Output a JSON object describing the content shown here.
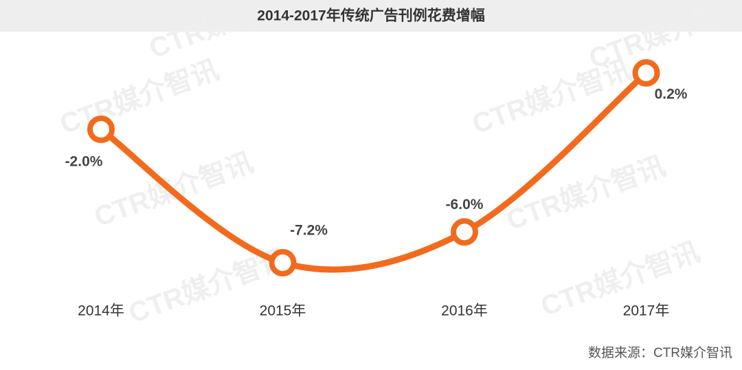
{
  "chart_data": {
    "type": "line",
    "title": "2014-2017年传统广告刊例花费增幅",
    "categories": [
      "2014年",
      "2015年",
      "2016年",
      "2017年"
    ],
    "values": [
      -2.0,
      -7.2,
      -6.0,
      0.2
    ],
    "value_labels": [
      "-2.0%",
      "-7.2%",
      "-6.0%",
      "0.2%"
    ],
    "color": "#f26b1d",
    "source": "数据来源：CTR媒介智讯",
    "watermark": "CTR媒介智讯"
  }
}
